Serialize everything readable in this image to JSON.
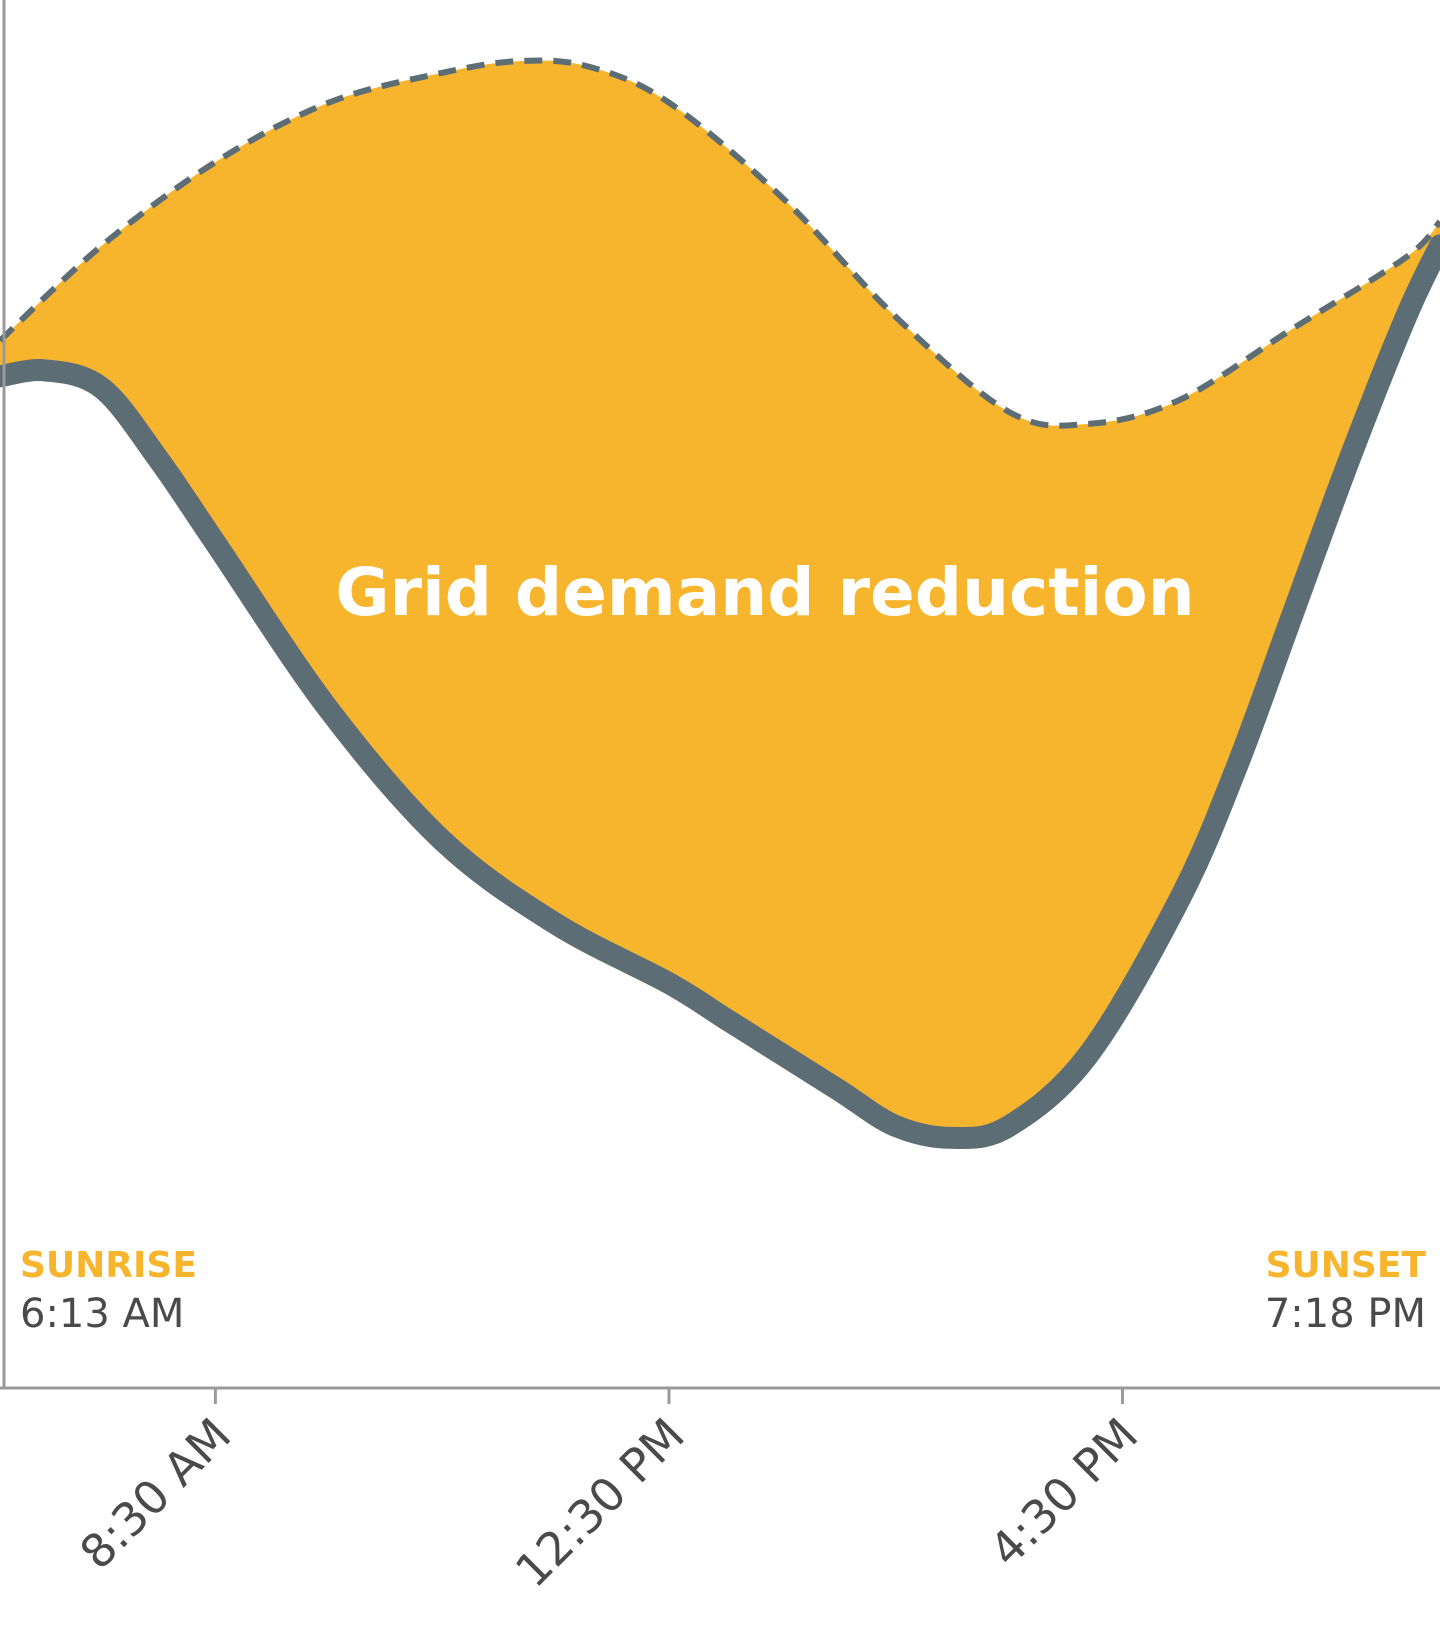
{
  "chart_data": {
    "type": "area",
    "title": "",
    "xlabel": "",
    "ylabel": "",
    "area_label": "Grid demand reduction",
    "x_ticks": [
      {
        "label": "8:30 AM",
        "hour": 8.5
      },
      {
        "label": "12:30 PM",
        "hour": 12.5
      },
      {
        "label": "4:30 PM",
        "hour": 16.5
      }
    ],
    "events": [
      {
        "label": "SUNRISE",
        "time": "6:13 AM",
        "align": "left"
      },
      {
        "label": "SUNSET",
        "time": "7:18 PM",
        "align": "right"
      }
    ],
    "series": [
      {
        "style": "dashed",
        "x": [
          6.6,
          7.5,
          8.5,
          9.5,
          10.5,
          11.2,
          11.8,
          12.5,
          13.5,
          14.5,
          15.5,
          16.2,
          17.0,
          18.0,
          19.0,
          19.3
        ],
        "values": [
          0.76,
          0.84,
          0.91,
          0.96,
          0.985,
          0.995,
          0.99,
          0.96,
          0.88,
          0.78,
          0.7,
          0.69,
          0.71,
          0.77,
          0.83,
          0.86
        ]
      },
      {
        "style": "solid",
        "x": [
          6.6,
          7.0,
          7.5,
          8.0,
          8.5,
          9.5,
          10.5,
          11.5,
          12.5,
          13.0,
          13.5,
          14.0,
          14.5,
          15.0,
          15.5,
          16.2,
          17.0,
          17.5,
          18.0,
          18.5,
          19.0,
          19.3
        ],
        "values": [
          0.73,
          0.735,
          0.72,
          0.66,
          0.59,
          0.45,
          0.34,
          0.27,
          0.22,
          0.19,
          0.16,
          0.13,
          0.1,
          0.09,
          0.1,
          0.16,
          0.29,
          0.4,
          0.53,
          0.66,
          0.78,
          0.84
        ]
      }
    ],
    "xlim": [
      6.6,
      19.3
    ],
    "ylim": [
      0,
      1
    ],
    "grid": false,
    "legend": "none",
    "colors": {
      "fill": "#F7B52E",
      "line": "#5D6D75",
      "area_text": "#FFFFFF",
      "event_title": "#F7B52E",
      "event_time": "#4A4A4A",
      "tick_label": "#4A4A4A",
      "axis": "#9A9A9A"
    }
  }
}
